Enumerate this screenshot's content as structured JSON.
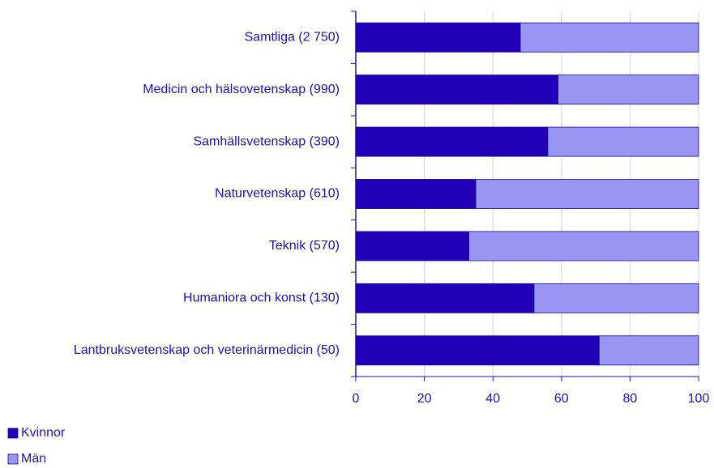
{
  "chart_data": {
    "type": "bar",
    "orientation": "horizontal",
    "stacked": true,
    "categories": [
      "Samtliga (2 750)",
      "Medicin och hälsovetenskap (990)",
      "Samhällsvetenskap (390)",
      "Naturvetenskap (610)",
      "Teknik (570)",
      "Humaniora och konst (130)",
      "Lantbruksvetenskap och veterinärmedicin (50)"
    ],
    "series": [
      {
        "name": "Kvinnor",
        "color": "#2200b8",
        "values": [
          48,
          59,
          56,
          35,
          33,
          52,
          71
        ]
      },
      {
        "name": "Män",
        "color": "#9896f2",
        "values": [
          52,
          41,
          44,
          65,
          67,
          48,
          29
        ]
      }
    ],
    "xlim": [
      0,
      100
    ],
    "xticks": [
      0,
      20,
      40,
      60,
      80,
      100
    ],
    "grid": true,
    "legend": "bottom-left"
  }
}
